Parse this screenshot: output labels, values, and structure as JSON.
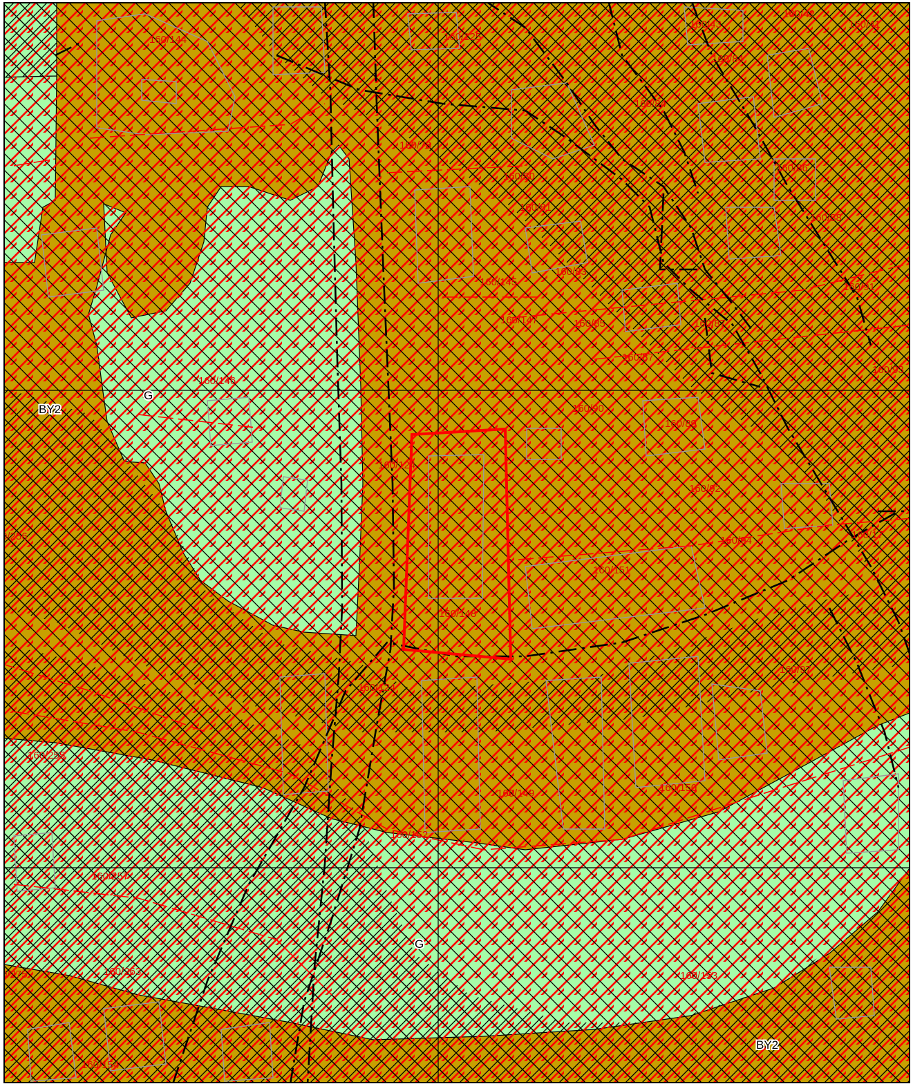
{
  "map": {
    "colors": {
      "built_zone": "#c8a000",
      "green_zone": "#a6fca8",
      "hatch_black": "#000000",
      "hatch_red": "#ff0000",
      "parcel_line": "#9a9a9a",
      "highlight": "#ff0000"
    },
    "zone_labels": [
      {
        "id": "by2-west",
        "text": "BY2"
      },
      {
        "id": "g-north",
        "text": "G"
      },
      {
        "id": "g-south",
        "text": "G"
      },
      {
        "id": "by2-south",
        "text": "BY2"
      }
    ],
    "plot_labels": [
      {
        "id": "p1",
        "text": "160/144"
      },
      {
        "id": "p2",
        "text": "160/125"
      },
      {
        "id": "p3",
        "text": "160/43"
      },
      {
        "id": "p4",
        "text": "160/42"
      },
      {
        "id": "p5",
        "text": "160/41"
      },
      {
        "id": "p6",
        "text": "160/84"
      },
      {
        "id": "p7",
        "text": "160/84"
      },
      {
        "id": "p8",
        "text": "160/78"
      },
      {
        "id": "p9",
        "text": "160/80"
      },
      {
        "id": "p10",
        "text": "160/86"
      },
      {
        "id": "p11",
        "text": "160/81"
      },
      {
        "id": "p12",
        "text": "160/88"
      },
      {
        "id": "p13",
        "text": "160/83"
      },
      {
        "id": "p14",
        "text": "160/145"
      },
      {
        "id": "p15",
        "text": "160/91"
      },
      {
        "id": "p16",
        "text": "160/147"
      },
      {
        "id": "p17",
        "text": "160/85"
      },
      {
        "id": "p18",
        "text": "160/87"
      },
      {
        "id": "p19",
        "text": "160/87"
      },
      {
        "id": "p20",
        "text": "160/93"
      },
      {
        "id": "p21",
        "text": "160/146"
      },
      {
        "id": "p22",
        "text": "160/90"
      },
      {
        "id": "p23",
        "text": "160/89"
      },
      {
        "id": "p24",
        "text": "160/124"
      },
      {
        "id": "p25",
        "text": "160/92"
      },
      {
        "id": "p26",
        "text": "0/256"
      },
      {
        "id": "p27",
        "text": "160/94"
      },
      {
        "id": "p28",
        "text": "160/17"
      },
      {
        "id": "p29",
        "text": "160/151"
      },
      {
        "id": "p30",
        "text": "160/148"
      },
      {
        "id": "p31",
        "text": "160/97"
      },
      {
        "id": "p32",
        "text": "160/124"
      },
      {
        "id": "p33",
        "text": "160/255"
      },
      {
        "id": "p34",
        "text": "160/149"
      },
      {
        "id": "p35",
        "text": "160/150"
      },
      {
        "id": "p36",
        "text": "160/152"
      },
      {
        "id": "p37",
        "text": "160/257"
      },
      {
        "id": "p38",
        "text": "0/275"
      },
      {
        "id": "p39",
        "text": "160/263"
      },
      {
        "id": "p40",
        "text": "160/153"
      },
      {
        "id": "p41",
        "text": "160/154"
      }
    ]
  }
}
